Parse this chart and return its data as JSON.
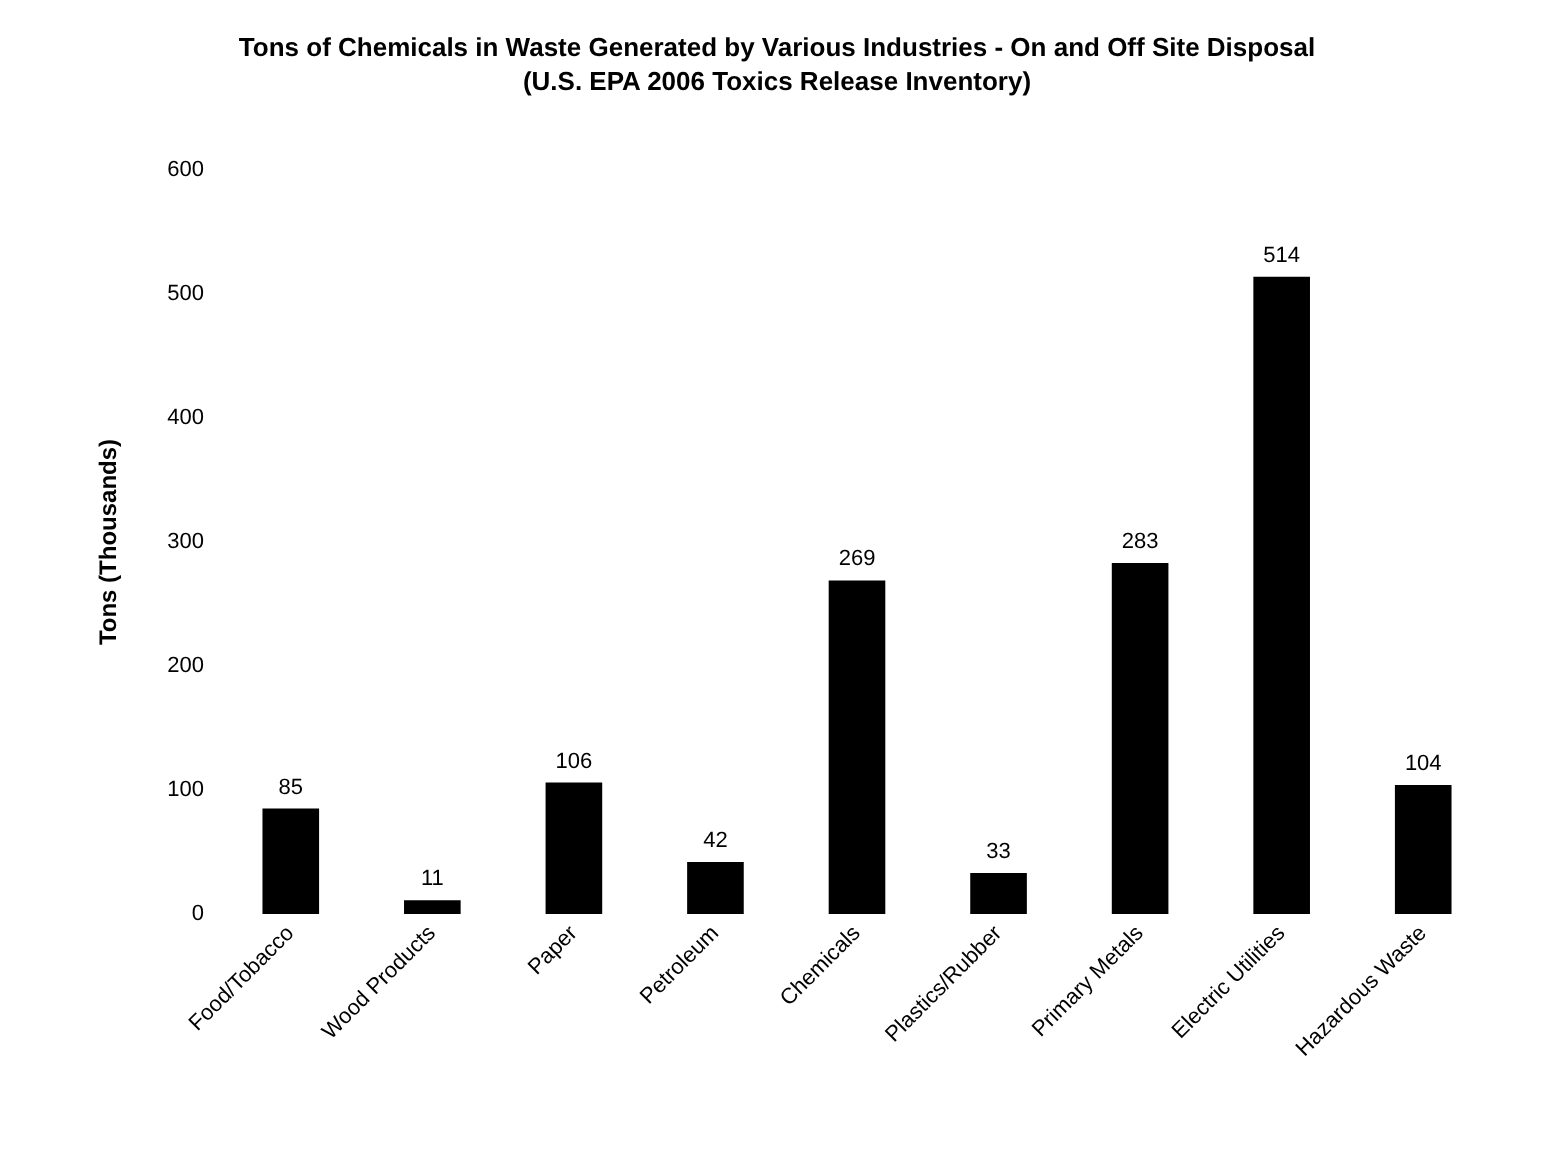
{
  "chart_data": {
    "type": "bar",
    "title": "Tons of Chemicals in Waste Generated by Various Industries - On and Off Site Disposal",
    "subtitle": "(U.S. EPA 2006 Toxics Release Inventory)",
    "ylabel": "Tons (Thousands)",
    "categories": [
      "Food/Tobacco",
      "Wood Products",
      "Paper",
      "Petroleum",
      "Chemicals",
      "Plastics/Rubber",
      "Primary Metals",
      "Electric Utilities",
      "Hazardous Waste"
    ],
    "values": [
      85,
      11,
      106,
      42,
      269,
      33,
      283,
      514,
      104
    ],
    "color": "#000000",
    "ylim": [
      0,
      600
    ],
    "yticks": [
      0,
      100,
      200,
      300,
      400,
      500,
      600
    ],
    "grid": false,
    "data_labels": true
  }
}
